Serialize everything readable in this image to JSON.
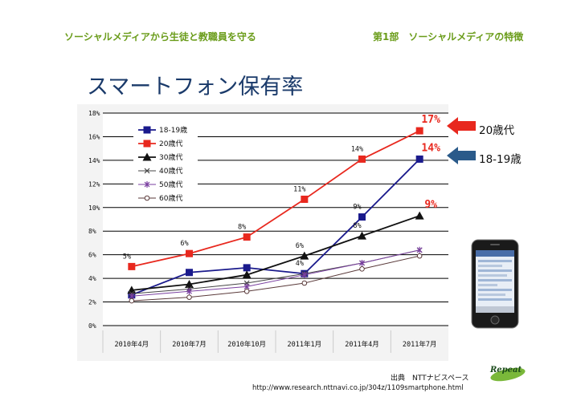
{
  "header": {
    "left": "ソーシャルメディアから生徒と教職員を守る",
    "right": "第1部　ソーシャルメディアの特徴"
  },
  "page_title": "スマートフォン保有率",
  "chart_data": {
    "type": "line",
    "title": "スマートフォン保有率",
    "categories": [
      "2010年4月",
      "2010年7月",
      "2010年10月",
      "2011年1月",
      "2011年4月",
      "2011年7月"
    ],
    "y_ticks": [
      "0%",
      "2%",
      "4%",
      "6%",
      "8%",
      "10%",
      "12%",
      "14%",
      "16%",
      "18%"
    ],
    "ylim": [
      0,
      18
    ],
    "series": [
      {
        "name": "18-19歳",
        "color": "#1a1a8c",
        "marker": "square",
        "values": [
          2.6,
          4.5,
          4.9,
          4.4,
          9.2,
          14.1
        ]
      },
      {
        "name": "20歳代",
        "color": "#e8281e",
        "marker": "square",
        "values": [
          5.0,
          6.1,
          7.5,
          10.7,
          14.1,
          16.5
        ]
      },
      {
        "name": "30歳代",
        "color": "#111111",
        "marker": "triangle",
        "values": [
          3.0,
          3.5,
          4.3,
          5.9,
          7.6,
          9.3
        ]
      },
      {
        "name": "40歳代",
        "color": "#444444",
        "marker": "x",
        "values": [
          2.7,
          3.1,
          3.6,
          4.4,
          5.3,
          6.4
        ]
      },
      {
        "name": "50歳代",
        "color": "#7a3fa0",
        "marker": "star",
        "values": [
          2.5,
          2.9,
          3.3,
          4.3,
          5.3,
          6.4
        ]
      },
      {
        "name": "60歳代",
        "color": "#5a3a3a",
        "marker": "circle",
        "values": [
          2.1,
          2.4,
          2.9,
          3.6,
          4.8,
          5.9
        ]
      }
    ],
    "data_labels": [
      {
        "text": "5%",
        "series": 1,
        "index": 0,
        "pos": "above"
      },
      {
        "text": "6%",
        "series": 1,
        "index": 1,
        "pos": "above"
      },
      {
        "text": "8%",
        "series": 1,
        "index": 2,
        "pos": "above"
      },
      {
        "text": "11%",
        "series": 1,
        "index": 3,
        "pos": "above"
      },
      {
        "text": "14%",
        "series": 1,
        "index": 4,
        "pos": "above"
      },
      {
        "text": "6%",
        "series": 2,
        "index": 3,
        "pos": "above"
      },
      {
        "text": "4%",
        "series": 0,
        "index": 3,
        "pos": "above"
      },
      {
        "text": "9%",
        "series": 0,
        "index": 4,
        "pos": "above"
      },
      {
        "text": "8%",
        "series": 2,
        "index": 4,
        "pos": "above"
      }
    ],
    "highlight_labels": [
      {
        "text": "17%",
        "color": "#e8281e",
        "series": 1
      },
      {
        "text": "14%",
        "color": "#e8281e",
        "series": 0
      },
      {
        "text": "9%",
        "color": "#e8281e",
        "series": 2
      }
    ]
  },
  "callouts": [
    {
      "label": "20歳代",
      "color": "#e8281e"
    },
    {
      "label": "18-19歳",
      "color": "#2a5a8a"
    }
  ],
  "source": {
    "line1": "出典　NTTナビスペース",
    "line2": "http://www.research.nttnavi.co.jp/304z/1109smartphone.html",
    "logo_text": "Repeat"
  }
}
